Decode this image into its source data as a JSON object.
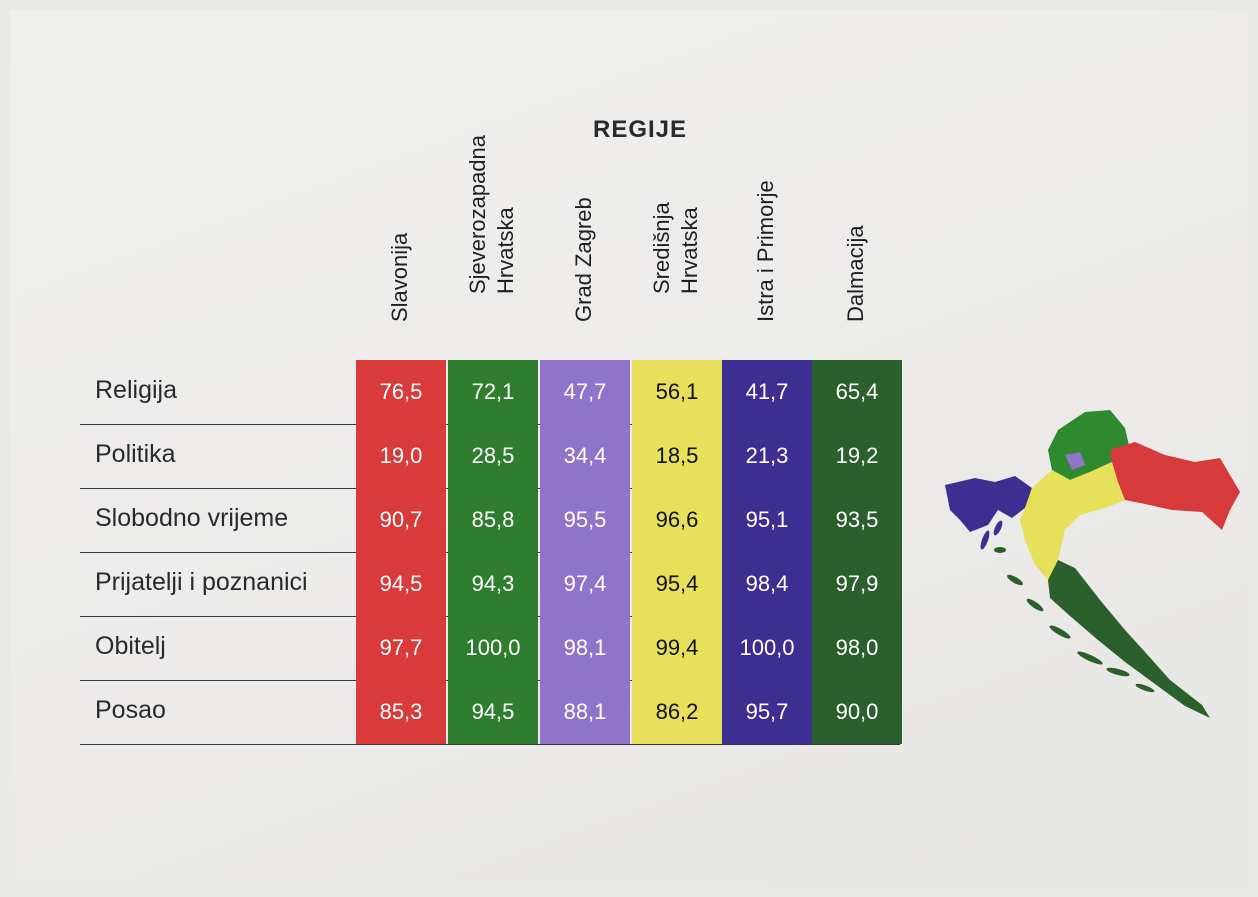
{
  "title": "REGIJE",
  "colors": {
    "Slavonija": "#d93b3b",
    "Sjeverozapadna Hrvatska": "#2f7d2f",
    "Grad Zagreb": "#8f74c9",
    "Središnja Hrvatska": "#e6e05a",
    "Istra i Primorje": "#3d2f91",
    "Dalmacija": "#2b5f2b"
  },
  "chart_data": {
    "type": "table",
    "title": "REGIJE",
    "columns": [
      "Slavonija",
      "Sjeverozapadna\nHrvatska",
      "Grad Zagreb",
      "Središnja\nHrvatska",
      "Istra i Primorje",
      "Dalmacija"
    ],
    "rows": [
      {
        "label": "Religija",
        "values": [
          "76,5",
          "72,1",
          "47,7",
          "56,1",
          "41,7",
          "65,4"
        ]
      },
      {
        "label": "Politika",
        "values": [
          "19,0",
          "28,5",
          "34,4",
          "18,5",
          "21,3",
          "19,2"
        ]
      },
      {
        "label": "Slobodno vrijeme",
        "values": [
          "90,7",
          "85,8",
          "95,5",
          "96,6",
          "95,1",
          "93,5"
        ]
      },
      {
        "label": "Prijatelji i poznanici",
        "values": [
          "94,5",
          "94,3",
          "97,4",
          "95,4",
          "98,4",
          "97,9"
        ]
      },
      {
        "label": "Obitelj",
        "values": [
          "97,7",
          "100,0",
          "98,1",
          "99,4",
          "100,0",
          "98,0"
        ]
      },
      {
        "label": "Posao",
        "values": [
          "85,3",
          "94,5",
          "88,1",
          "86,2",
          "95,7",
          "90,0"
        ]
      }
    ]
  }
}
